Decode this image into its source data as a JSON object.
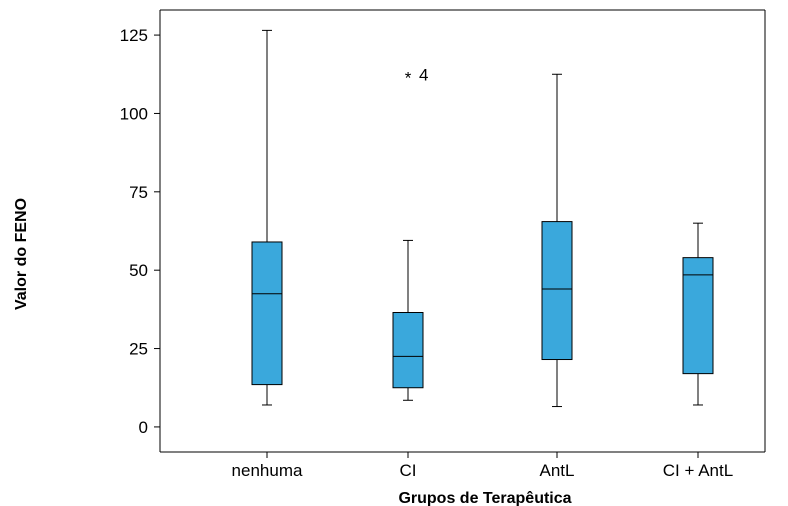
{
  "chart_data": {
    "type": "boxplot",
    "title": "",
    "xlabel": "Grupos de Terapêutica",
    "ylabel": "Valor do FENO",
    "ylim": [
      -8,
      133
    ],
    "yticks": [
      0,
      25,
      50,
      75,
      100,
      125
    ],
    "yticks_labels": [
      "0",
      "25",
      "50",
      "75",
      "100",
      "125"
    ],
    "categories": [
      "nenhuma",
      "CI",
      "AntL",
      "CI + AntL"
    ],
    "boxes": [
      {
        "category": "nenhuma",
        "whisker_low": 7,
        "q1": 13.5,
        "median": 42.5,
        "q3": 59,
        "whisker_high": 126.5
      },
      {
        "category": "CI",
        "whisker_low": 8.5,
        "q1": 12.5,
        "median": 22.5,
        "q3": 36.5,
        "whisker_high": 59.5
      },
      {
        "category": "AntL",
        "whisker_low": 6.5,
        "q1": 21.5,
        "median": 44,
        "q3": 65.5,
        "whisker_high": 112.5
      },
      {
        "category": "CI + AntL",
        "whisker_low": 7,
        "q1": 17,
        "median": 48.5,
        "q3": 54,
        "whisker_high": 65
      }
    ],
    "outliers": [
      {
        "category": "CI",
        "value": 112.5,
        "marker": "*",
        "label": "4"
      }
    ],
    "box_color": "#3aa8dc",
    "grid": false,
    "legend": "none"
  }
}
